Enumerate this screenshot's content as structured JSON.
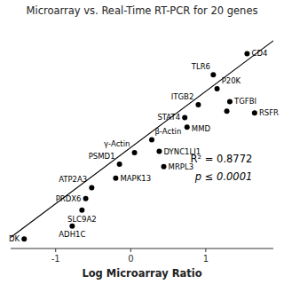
{
  "chart_data": {
    "type": "scatter",
    "title": "Microarray vs. Real-Time RT-PCR for 20 genes",
    "xlabel": "Log Microarray Ratio",
    "xlim": [
      -1.6,
      1.9
    ],
    "ylim": [
      -1.5,
      2.0
    ],
    "xticks": [
      -1,
      0,
      1
    ],
    "tick_labels": "x",
    "color": "#000000",
    "x": [
      -1.42,
      -0.78,
      -0.65,
      -0.6,
      -0.52,
      -0.2,
      -0.15,
      0.05,
      0.28,
      0.38,
      0.44,
      0.75,
      0.72,
      0.9,
      1.1,
      1.15,
      1.32,
      1.55,
      1.65,
      1.28
    ],
    "values": [
      -1.35,
      -1.15,
      -0.9,
      -0.72,
      -0.55,
      -0.4,
      -0.18,
      0.0,
      0.2,
      0.02,
      -0.22,
      0.4,
      0.55,
      0.75,
      1.22,
      1.0,
      0.8,
      1.55,
      0.62,
      0.65
    ],
    "labels": [
      "DK",
      "ADH1C",
      "SLC9A2",
      "PRDX6",
      "ATP2A3",
      "MAPK13",
      "PSMD1",
      "γ-Actin",
      "β-Actin",
      "DYNC1LI1",
      "MRPL3",
      "MMD",
      "STAT4",
      "ITGB2",
      "TLR6",
      "P20K",
      "TGFBI",
      "CD4",
      "RSFR",
      null
    ],
    "line": {
      "type": "line",
      "color": "#000000",
      "x": [
        -1.6,
        1.9
      ],
      "values": [
        -1.328,
        1.752
      ]
    },
    "annotations": [
      "R² = 0.8772",
      "p ≤ 0.0001"
    ]
  }
}
